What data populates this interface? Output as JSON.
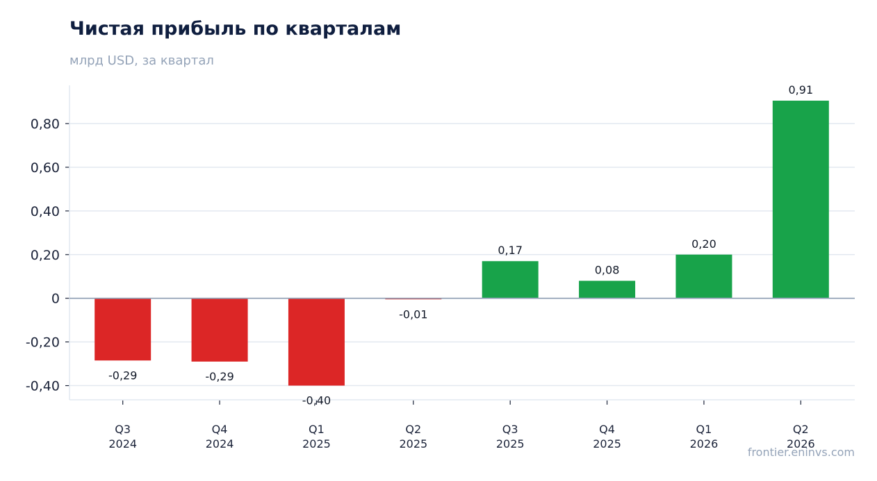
{
  "header": {
    "title": "Чистая прибыль по кварталам",
    "subtitle": "млрд USD, за квартал"
  },
  "footer": {
    "source": "frontier.eninvs.com"
  },
  "colors": {
    "positive": "#18a34a",
    "negative": "#dc2626",
    "grid": "#e2e8f0",
    "zero_line": "#94a3b8"
  },
  "chart_data": {
    "type": "bar",
    "title": "Чистая прибыль по кварталам",
    "subtitle": "млрд USD, за квартал",
    "categories": [
      [
        "Q3",
        "2024"
      ],
      [
        "Q4",
        "2024"
      ],
      [
        "Q1",
        "2025"
      ],
      [
        "Q2",
        "2025"
      ],
      [
        "Q3",
        "2025"
      ],
      [
        "Q4",
        "2025"
      ],
      [
        "Q1",
        "2026"
      ],
      [
        "Q2",
        "2026"
      ]
    ],
    "values": [
      -0.285,
      -0.29,
      -0.4,
      -0.005,
      0.17,
      0.08,
      0.2,
      0.905
    ],
    "value_labels": [
      "-0,29",
      "-0,29",
      "-0,40",
      "-0,01",
      "0,17",
      "0,08",
      "0,20",
      "0,91"
    ],
    "yticks": [
      -0.4,
      -0.2,
      0,
      0.2,
      0.4,
      0.6,
      0.8
    ],
    "ytick_labels": [
      "-0,40",
      "-0,20",
      "0",
      "0,20",
      "0,40",
      "0,60",
      "0,80"
    ],
    "ylim": [
      -0.465,
      0.975
    ],
    "grid": true,
    "legend": "none"
  }
}
